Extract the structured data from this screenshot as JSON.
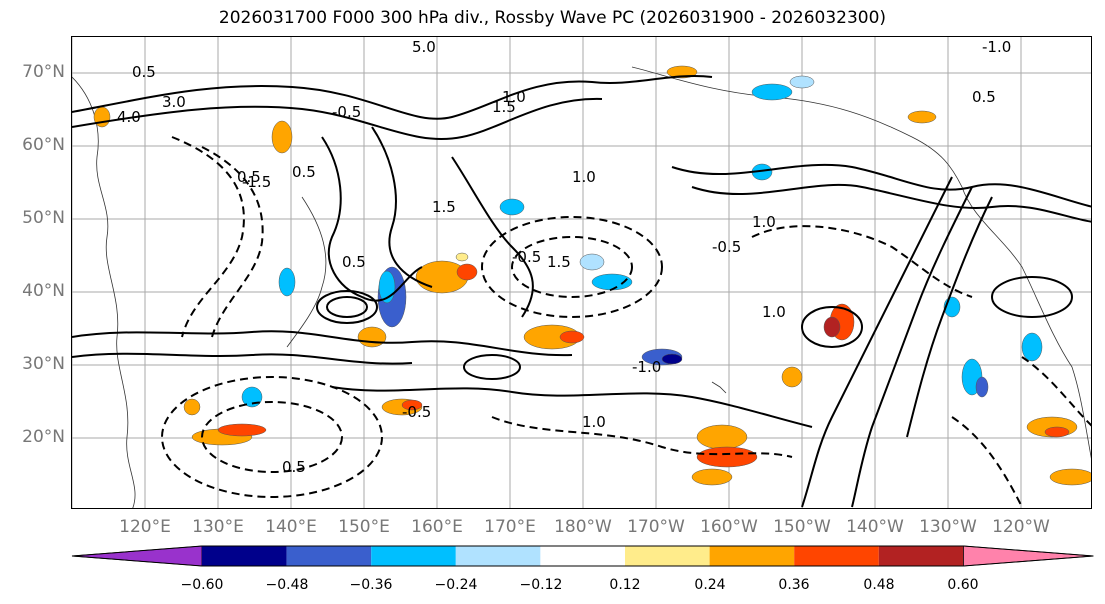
{
  "title": "2026031700 F000 300 hPa div., Rossby Wave PC (2026031900 - 2026032300)",
  "lat_labels": [
    "70°N",
    "60°N",
    "50°N",
    "40°N",
    "30°N",
    "20°N"
  ],
  "lon_labels": [
    "120°E",
    "130°E",
    "140°E",
    "150°E",
    "160°E",
    "170°E",
    "180°W",
    "170°W",
    "160°W",
    "150°W",
    "140°W",
    "130°W",
    "120°W"
  ],
  "colorbar": {
    "tick_labels": [
      "−0.60",
      "−0.48",
      "−0.36",
      "−0.24",
      "−0.12",
      "0.12",
      "0.24",
      "0.36",
      "0.48",
      "0.60"
    ],
    "colors": [
      "#9932cc",
      "#00008b",
      "#3a5fcd",
      "#00bfff",
      "#b0e2ff",
      "#ffffff",
      "#ffec8b",
      "#ffa500",
      "#ff4500",
      "#b22222",
      "#ff82ab"
    ]
  },
  "contour_labels": [
    "5.0",
    "0.5",
    "1.0",
    "1.5",
    "3.0",
    "-0.5",
    "-1.0",
    "4.0",
    "0.5",
    "1.0",
    "-0.5",
    "1.5",
    "0.5",
    "-1.5",
    "-1.0",
    "1.0",
    "0.5",
    "1.5",
    "1.0",
    "-0.5",
    "0.5",
    "1.0",
    "-0.5",
    "0.5"
  ]
}
